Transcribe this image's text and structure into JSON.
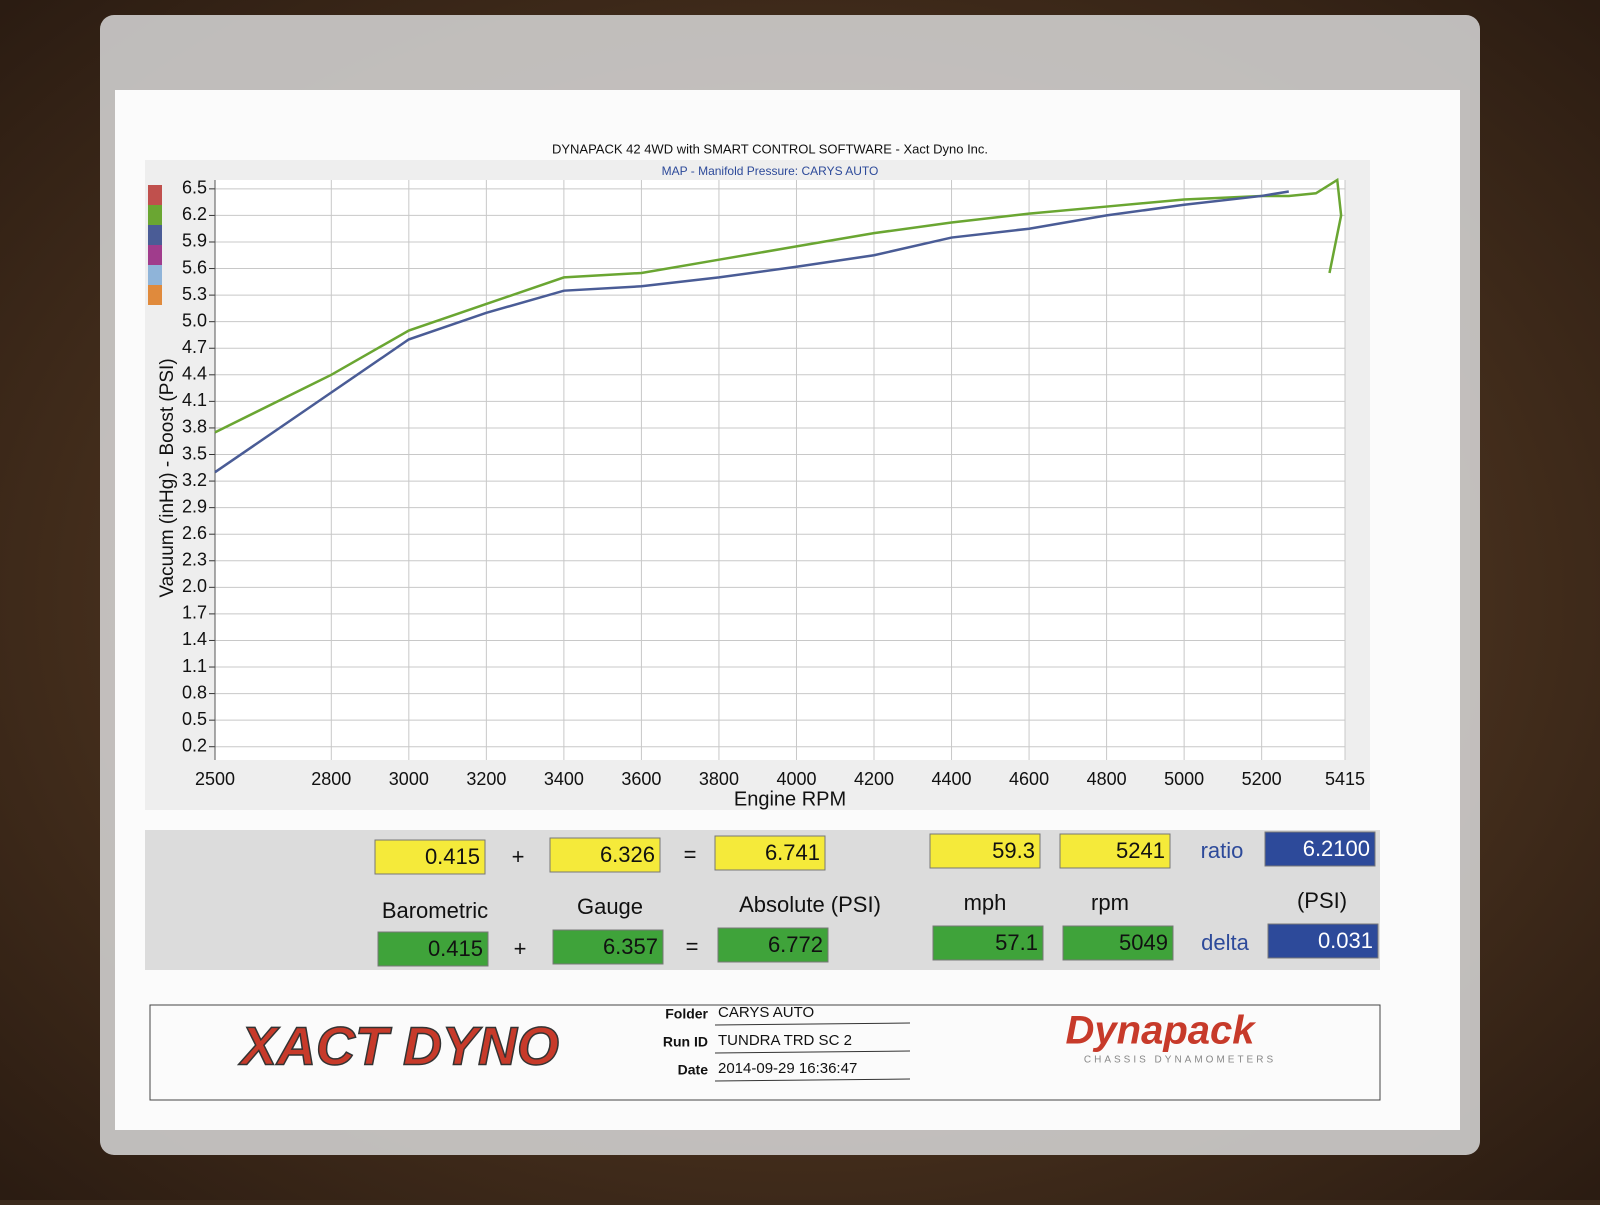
{
  "chart_data": {
    "type": "line",
    "title": "DYNAPACK 42 4WD with SMART CONTROL SOFTWARE - Xact Dyno Inc.",
    "subtitle": "MAP - Manifold Pressure: CARYS AUTO",
    "ylabel": "Vacuum (inHg) - Boost (PSI)",
    "xlabel": "Engine RPM",
    "x": [
      2500,
      2800,
      3000,
      3200,
      3400,
      3600,
      3800,
      4000,
      4200,
      4400,
      4600,
      4800,
      5000,
      5200,
      5270,
      5340,
      5395,
      5405,
      5375
    ],
    "series": [
      {
        "color": "#6aa632",
        "values": [
          3.75,
          4.4,
          4.9,
          5.2,
          5.5,
          5.55,
          5.7,
          5.85,
          6.0,
          6.12,
          6.22,
          6.3,
          6.38,
          6.42,
          6.42,
          6.45,
          6.6,
          6.2,
          5.55
        ]
      },
      {
        "color": "#4a5c96",
        "values": [
          3.3,
          4.2,
          4.8,
          5.1,
          5.35,
          5.4,
          5.5,
          5.62,
          5.75,
          5.95,
          6.05,
          6.2,
          6.32,
          6.42,
          6.47,
          null,
          null,
          null,
          null
        ]
      }
    ],
    "xlim": [
      2500,
      5415
    ],
    "xticks": [
      2500,
      2800,
      3000,
      3200,
      3400,
      3600,
      3800,
      4000,
      4200,
      4400,
      4600,
      4800,
      5000,
      5200,
      5415
    ],
    "ylim": [
      0.05,
      6.6
    ],
    "yticks": [
      0.2,
      0.5,
      0.8,
      1.1,
      1.4,
      1.7,
      {
        "value": 2,
        "label": "2.0"
      },
      2.3,
      2.6,
      2.9,
      3.2,
      3.5,
      3.8,
      4.1,
      4.4,
      4.7,
      {
        "value": 5,
        "label": "5.0"
      },
      5.3,
      5.6,
      5.9,
      6.2,
      6.5
    ],
    "grid": true
  },
  "summary": {
    "plus": "+",
    "equals": "=",
    "row1": {
      "barometric": "0.415",
      "gauge": "6.326",
      "absolute": "6.741",
      "mph": "59.3",
      "rpm": "5241",
      "ratio_label": "ratio",
      "ratio": "6.2100"
    },
    "labels": {
      "barometric": "Barometric",
      "gauge": "Gauge",
      "absolute": "Absolute (PSI)",
      "mph": "mph",
      "rpm": "rpm",
      "psi": "(PSI)"
    },
    "row2": {
      "barometric": "0.415",
      "gauge": "6.357",
      "absolute": "6.772",
      "mph": "57.1",
      "rpm": "5049",
      "delta_label": "delta",
      "delta": "0.031"
    }
  },
  "info": {
    "folder_label": "Folder",
    "folder": "CARYS AUTO",
    "run_label": "Run ID",
    "run": "TUNDRA TRD SC 2",
    "date_label": "Date",
    "date": "2014-09-29 16:36:47",
    "logo_left": "XACT DYNO",
    "logo_right": "Dynapack",
    "logo_right_sub": "CHASSIS DYNAMOMETERS"
  }
}
